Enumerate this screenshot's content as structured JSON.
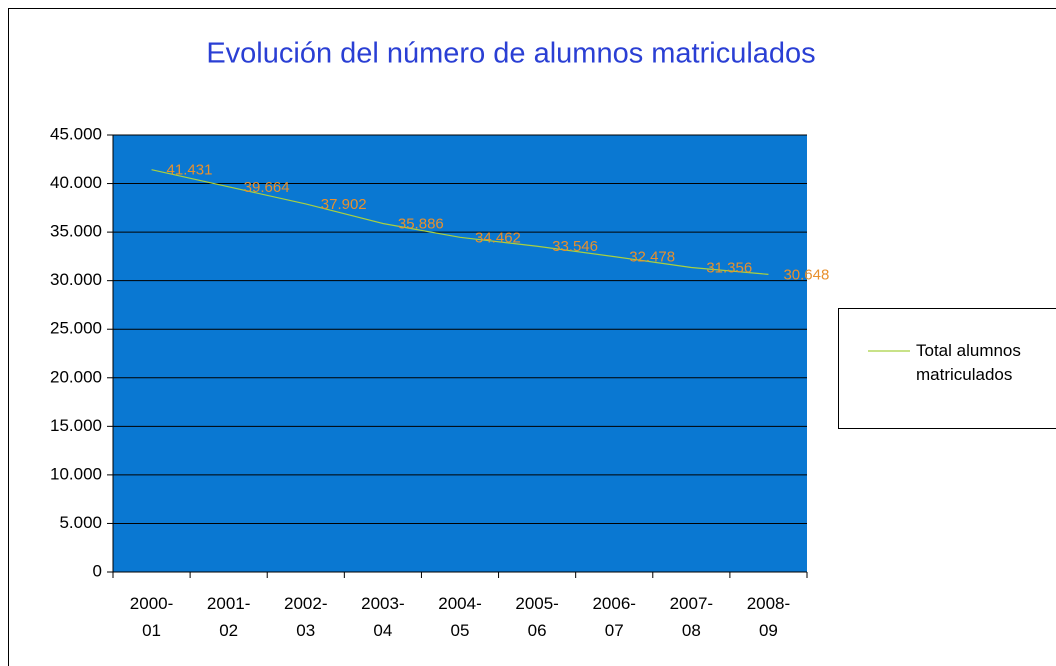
{
  "chart_data": {
    "type": "line",
    "title": "Evolución del número de alumnos matriculados",
    "categories": [
      "2000-01",
      "2001-02",
      "2002-03",
      "2003-04",
      "2004-05",
      "2005-06",
      "2006-07",
      "2007-08",
      "2008-09"
    ],
    "series": [
      {
        "name": "Total alumnos matriculados",
        "color": "#a8d040",
        "values": [
          41431,
          39664,
          37902,
          35886,
          34462,
          33546,
          32478,
          31356,
          30648
        ],
        "value_labels": [
          "41.431",
          "39.664",
          "37.902",
          "35.886",
          "34.462",
          "33.546",
          "32.478",
          "31.356",
          "30.648"
        ],
        "label_color": "#e8902c"
      }
    ],
    "ylim": [
      0,
      45000
    ],
    "yticks": [
      0,
      {
        "value": 5000,
        "label": "5.000"
      },
      {
        "value": 10000,
        "label": "10.000"
      },
      {
        "value": 15000,
        "label": "15.000"
      },
      {
        "value": 20000,
        "label": "20.000"
      },
      {
        "value": 25000,
        "label": "25.000"
      },
      {
        "value": 30000,
        "label": "30.000"
      },
      {
        "value": 35000,
        "label": "35.000"
      },
      {
        "value": 40000,
        "label": "40.000"
      },
      {
        "value": 45000,
        "label": "45.000"
      }
    ],
    "grid": true,
    "plot_background": "#0a78d2",
    "legend": "right"
  }
}
